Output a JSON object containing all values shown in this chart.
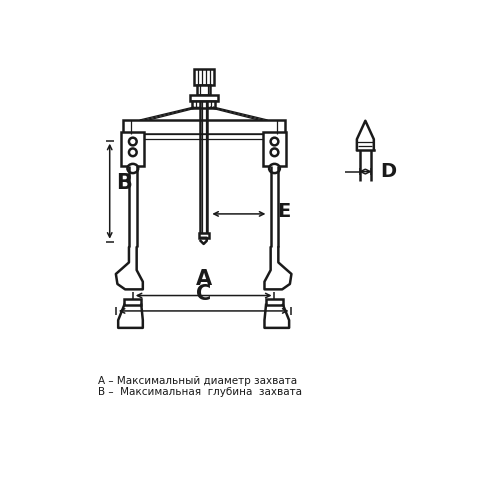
{
  "bg_color": "#ffffff",
  "line_color": "#1a1a1a",
  "label_color": "#1a1a1a",
  "text_A": "A",
  "text_B": "B",
  "text_C": "C",
  "text_D": "D",
  "text_E": "E",
  "caption_A": "A – Максимальный диаметр захвата",
  "caption_B": "B –  Максимальная  глубина  захвата",
  "figsize": [
    4.8,
    4.8
  ],
  "dpi": 100
}
